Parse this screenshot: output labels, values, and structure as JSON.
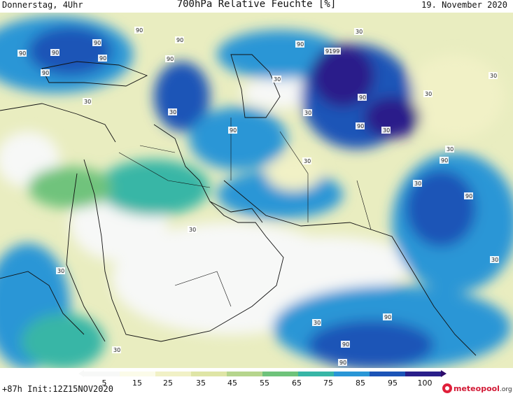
{
  "header": {
    "left": "Donnerstag, 4Uhr",
    "title": "700hPa Relative Feuchte [%]",
    "right": "19. November 2020"
  },
  "footer": {
    "run_info": "+87h Init:12Z15NOV2020",
    "logo_text": "meteopool",
    "logo_suffix": ".org"
  },
  "colorbar": {
    "ticks": [
      "5",
      "15",
      "25",
      "35",
      "45",
      "55",
      "65",
      "75",
      "85",
      "95",
      "100"
    ],
    "colors": [
      "#f7f8f7",
      "#fbfbe9",
      "#f1f1c6",
      "#dfe5a6",
      "#b6d58d",
      "#6fc37b",
      "#38b6a6",
      "#2a96d6",
      "#1c54b7",
      "#2a1f8a",
      "#2c0a6a"
    ]
  },
  "contour_labels": [
    "90",
    "90",
    "90",
    "90",
    "90",
    "90",
    "90",
    "90",
    "9199",
    "90",
    "90",
    "90",
    "90",
    "90",
    "90",
    "90",
    "90",
    "90",
    "30",
    "30",
    "30",
    "30",
    "30",
    "30",
    "30",
    "30",
    "30",
    "30",
    "30",
    "30",
    "30",
    "30",
    "30",
    "30"
  ],
  "palette": {
    "very_dry": "#f7f8f7",
    "dry": "#f1f1c6",
    "mid_dry": "#dfe5a6",
    "green": "#6fc37b",
    "teal": "#38b6a6",
    "blue": "#2a96d6",
    "dark_blue": "#1c54b7",
    "navy": "#2a1f8a",
    "border": "#111111"
  }
}
